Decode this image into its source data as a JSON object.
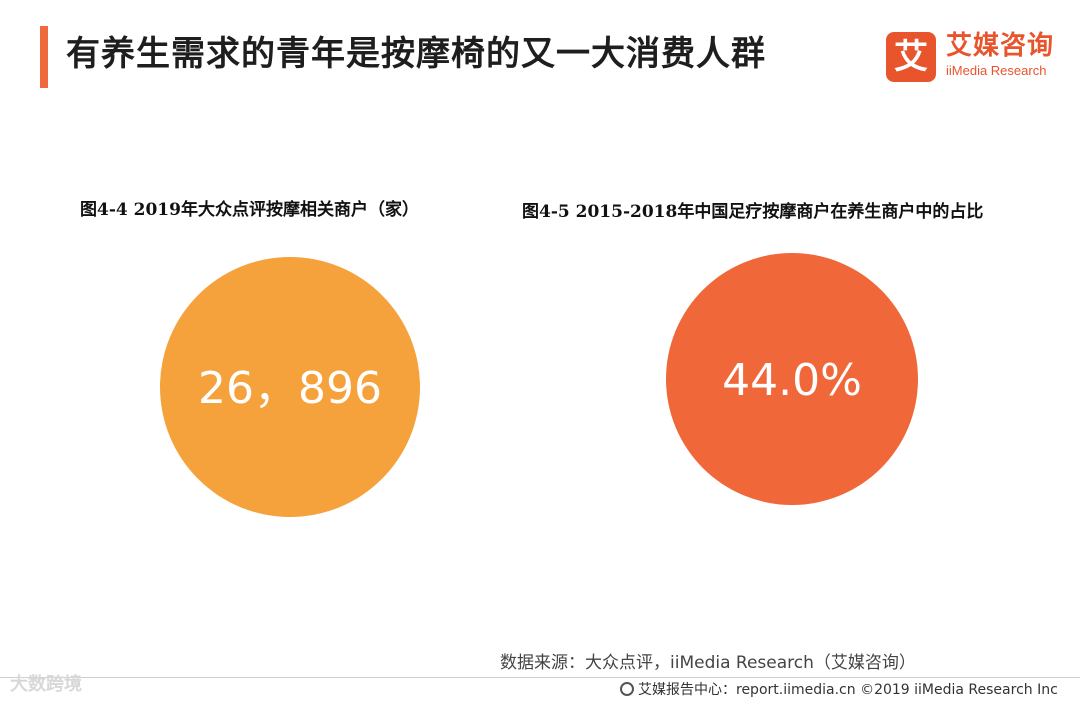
{
  "page_title": "有养生需求的青年是按摩椅的又一大消费人群",
  "brand": {
    "logo_char": "艾",
    "name_cn": "艾媒咨询",
    "name_en": "iiMedia Research",
    "color": "#e8552d"
  },
  "chart_data": [
    {
      "type": "pie",
      "title": "图4-4 2019年大众点评按摩相关商户（家）",
      "label": "26，896",
      "values": [
        26896
      ],
      "color": "#f6a23c"
    },
    {
      "type": "pie",
      "title": "图4-5 2015-2018年中国足疗按摩商户在养生商户中的占比",
      "label": "44.0%",
      "values": [
        44.0
      ],
      "color": "#f0673a"
    }
  ],
  "source": "数据来源：大众点评，iiMedia Research（艾媒咨询）",
  "footer": "艾媒报告中心：report.iimedia.cn ©2019  iiMedia Research  Inc",
  "watermark": "大数跨境"
}
